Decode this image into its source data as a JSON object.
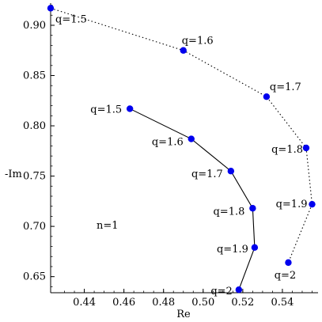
{
  "chart_data": {
    "type": "scatter",
    "title": "",
    "xlabel": "Re",
    "ylabel": "-Im",
    "xlim": [
      0.423,
      0.558
    ],
    "ylim": [
      0.634,
      0.922
    ],
    "x_ticks": [
      0.44,
      0.46,
      0.48,
      0.5,
      0.52,
      0.54
    ],
    "x_tick_labels": [
      "0.44",
      "0.46",
      "0.48",
      "0.50",
      "0.52",
      "0.54"
    ],
    "y_ticks": [
      0.65,
      0.7,
      0.75,
      0.8,
      0.85,
      0.9
    ],
    "y_tick_labels": [
      "0.65",
      "0.70",
      "0.75",
      "0.80",
      "0.85",
      "0.90"
    ],
    "grid": false,
    "annotation": "n=1",
    "series": [
      {
        "line_style": "dotted",
        "marker_color": "#0000ee",
        "points": [
          {
            "x": 0.423,
            "y": 0.917,
            "label": "q=1.5"
          },
          {
            "x": 0.49,
            "y": 0.875,
            "label": "q=1.6"
          },
          {
            "x": 0.532,
            "y": 0.829,
            "label": "q=1.7"
          },
          {
            "x": 0.552,
            "y": 0.778,
            "label": "q=1.8"
          },
          {
            "x": 0.555,
            "y": 0.722,
            "label": "q=1.9"
          },
          {
            "x": 0.543,
            "y": 0.664,
            "label": "q=2"
          }
        ]
      },
      {
        "line_style": "solid",
        "marker_color": "#0000ee",
        "points": [
          {
            "x": 0.463,
            "y": 0.817,
            "label": "q=1.5"
          },
          {
            "x": 0.494,
            "y": 0.787,
            "label": "q=1.6"
          },
          {
            "x": 0.514,
            "y": 0.755,
            "label": "q=1.7"
          },
          {
            "x": 0.525,
            "y": 0.718,
            "label": "q=1.8"
          },
          {
            "x": 0.526,
            "y": 0.679,
            "label": "q=1.9"
          },
          {
            "x": 0.518,
            "y": 0.637,
            "label": "q=2"
          }
        ]
      }
    ]
  }
}
